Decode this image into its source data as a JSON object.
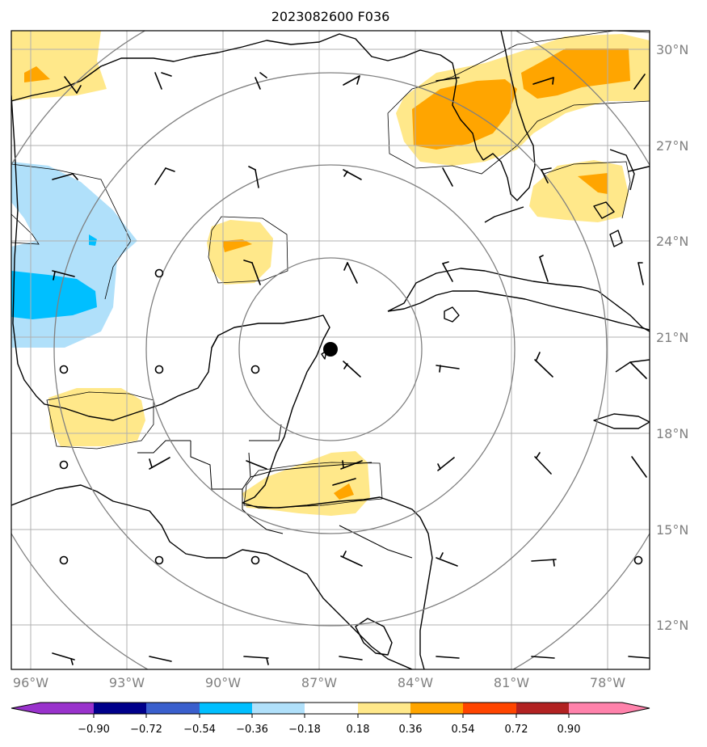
{
  "map": {
    "title": "2023082600 F036",
    "lat_labels": [
      "30°N",
      "27°N",
      "24°N",
      "21°N",
      "18°N",
      "15°N",
      "12°N"
    ],
    "lon_labels": [
      "96°W",
      "93°W",
      "90°W",
      "87°W",
      "84°W",
      "81°W",
      "78°W"
    ],
    "storm_center": {
      "lat": 20.6,
      "lon": -86.6
    },
    "colorbar": {
      "ticks": [
        "−0.90",
        "−0.72",
        "−0.54",
        "−0.36",
        "−0.18",
        "0.18",
        "0.36",
        "0.54",
        "0.72",
        "0.90"
      ],
      "colors": [
        "#9932cc",
        "#00008b",
        "#3a5fcd",
        "#00bfff",
        "#b0e0fa",
        "#ffffff",
        "#ffe88a",
        "#ffa500",
        "#ff4500",
        "#b22222",
        "#ff82ab"
      ]
    }
  }
}
